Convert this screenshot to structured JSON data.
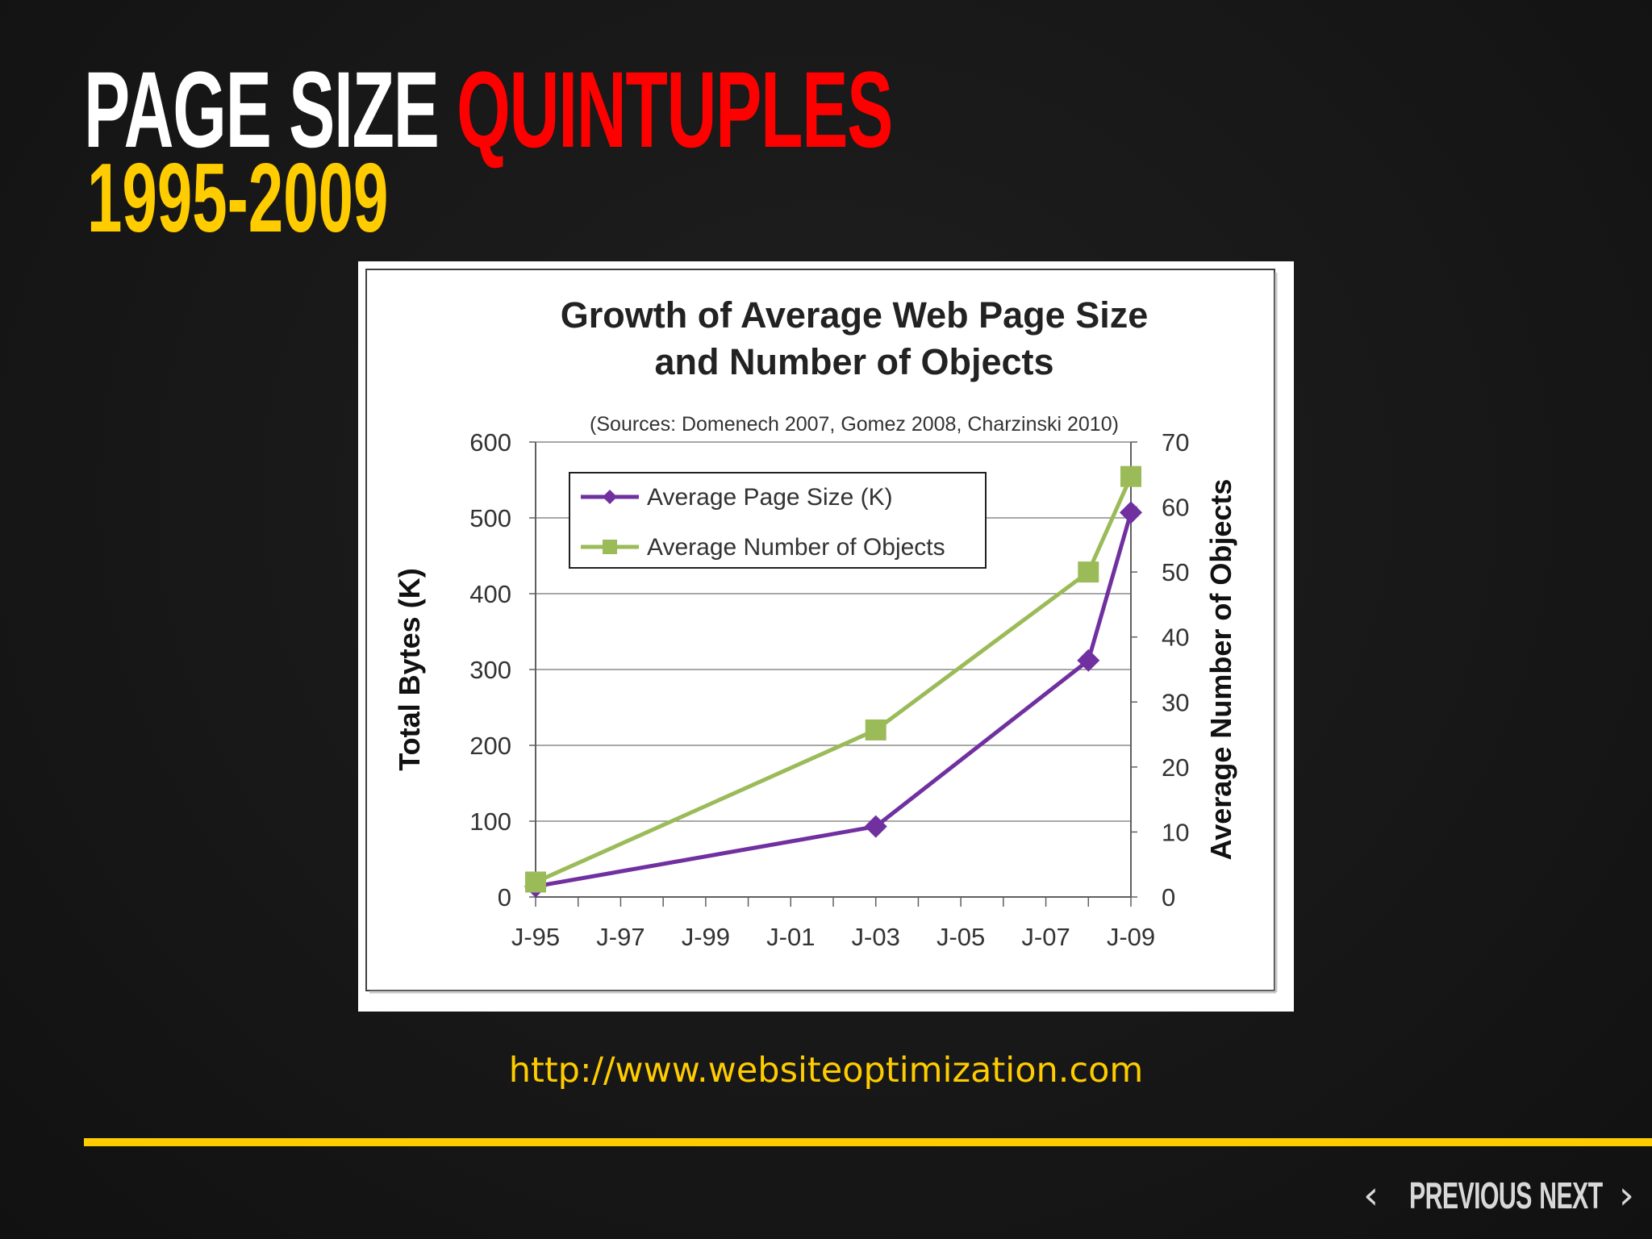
{
  "slide": {
    "title_white": "PAGE SIZE",
    "title_red": "QUINTUPLES",
    "subtitle": "1995-2009",
    "source_url": "http://www.websiteoptimization.com",
    "nav": {
      "previous": "PREVIOUS",
      "next": "NEXT"
    },
    "colors": {
      "accent_yellow": "#ffcc00",
      "accent_red": "#ff0000",
      "background": "#1a1a1a"
    }
  },
  "chart_data": {
    "type": "line",
    "title": [
      "Growth of Average Web Page Size",
      "and Number of Objects"
    ],
    "subtitle": "(Sources: Domenech 2007, Gomez 2008, Charzinski 2010)",
    "ylabel": "Total Bytes (K)",
    "y2label": "Average Number of Objects",
    "ylim": [
      0,
      600
    ],
    "y2lim": [
      0,
      70
    ],
    "yticks": [
      "0",
      "100",
      "200",
      "300",
      "400",
      "500",
      "600"
    ],
    "y2ticks": [
      "0",
      "10",
      "20",
      "30",
      "40",
      "50",
      "60",
      "70"
    ],
    "xlim": [
      1995,
      2009
    ],
    "xticks": [
      "J-95",
      "J-97",
      "J-99",
      "J-01",
      "J-03",
      "J-05",
      "J-07",
      "J-09"
    ],
    "grid": true,
    "legend_position": "top-left",
    "series": [
      {
        "name": "Average Page Size (K)",
        "axis": "left",
        "color": "#7030a0",
        "marker": "diamond",
        "x": [
          1995,
          2003,
          2008,
          2009
        ],
        "y": [
          14,
          93,
          312,
          507
        ]
      },
      {
        "name": "Average Number of Objects",
        "axis": "right",
        "color": "#9bbb59",
        "marker": "square",
        "x": [
          1995,
          2003,
          2008,
          2009
        ],
        "y": [
          2.3,
          25.7,
          50,
          64.7
        ]
      }
    ]
  }
}
